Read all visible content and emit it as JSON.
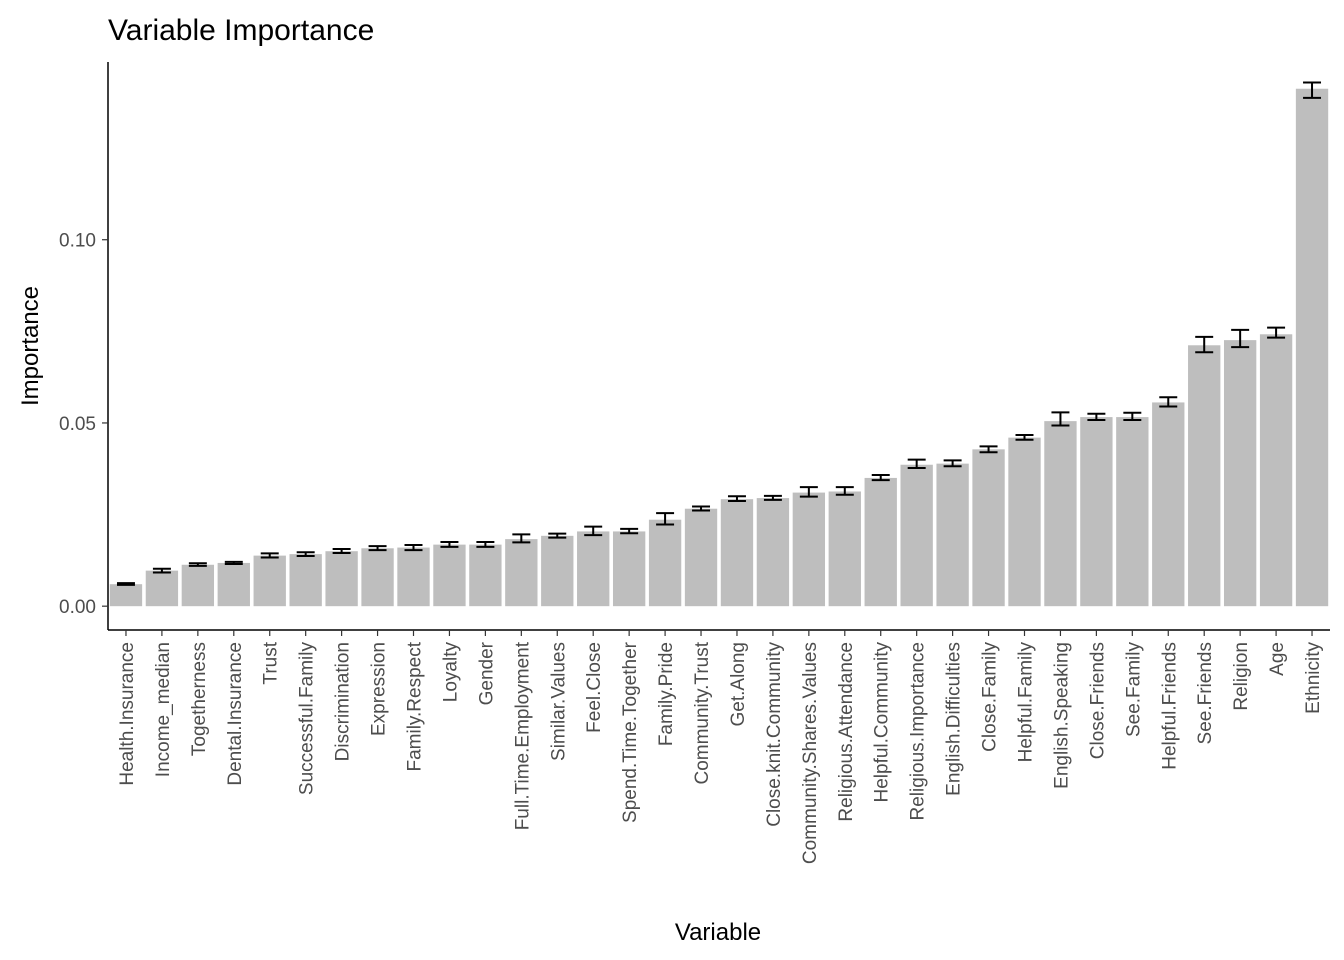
{
  "chart_data": {
    "type": "bar",
    "title": "Variable Importance",
    "xlabel": "Variable",
    "ylabel": "Importance",
    "ylim": [
      -0.0065,
      0.1485
    ],
    "yticks": [
      0.0,
      0.05,
      0.1
    ],
    "ytick_labels": [
      "0.00",
      "0.05",
      "0.10"
    ],
    "grid": false,
    "bar_color": "#bebebe",
    "errorbar_color": "#000000",
    "categories": [
      "Health.Insurance",
      "Income_median",
      "Togetherness",
      "Dental.Insurance",
      "Trust",
      "Successful.Family",
      "Discrimination",
      "Expression",
      "Family.Respect",
      "Loyalty",
      "Gender",
      "Full.Time.Employment",
      "Similar.Values",
      "Feel.Close",
      "Spend.Time.Together",
      "Family.Pride",
      "Community.Trust",
      "Get.Along",
      "Close.knit.Community",
      "Community.Shares.Values",
      "Religious.Attendance",
      "Helpful.Community",
      "Religious.Importance",
      "English.Difficulties",
      "Close.Family",
      "Helpful.Family",
      "English.Speaking",
      "Close.Friends",
      "See.Family",
      "Helpful.Friends",
      "See.Friends",
      "Religion",
      "Age",
      "Ethnicity"
    ],
    "values": [
      0.006,
      0.0097,
      0.0113,
      0.0118,
      0.0138,
      0.0142,
      0.015,
      0.0158,
      0.016,
      0.0168,
      0.0168,
      0.0183,
      0.0192,
      0.0204,
      0.0204,
      0.0236,
      0.0266,
      0.0292,
      0.0295,
      0.031,
      0.0313,
      0.035,
      0.0386,
      0.0389,
      0.0428,
      0.046,
      0.0505,
      0.0516,
      0.0516,
      0.0556,
      0.0712,
      0.0726,
      0.0742,
      0.1412
    ],
    "err_low": [
      0.0058,
      0.0092,
      0.011,
      0.0115,
      0.0133,
      0.0137,
      0.0145,
      0.0153,
      0.0153,
      0.0162,
      0.0162,
      0.0174,
      0.0187,
      0.0194,
      0.0199,
      0.0223,
      0.0261,
      0.0287,
      0.029,
      0.0299,
      0.0304,
      0.0344,
      0.0377,
      0.0382,
      0.042,
      0.0454,
      0.0493,
      0.0508,
      0.0508,
      0.0545,
      0.0693,
      0.0707,
      0.0733,
      0.1387
    ],
    "err_high": [
      0.0063,
      0.0102,
      0.0117,
      0.0121,
      0.0144,
      0.0147,
      0.0156,
      0.0164,
      0.0167,
      0.0175,
      0.0175,
      0.0196,
      0.0198,
      0.0217,
      0.0211,
      0.0254,
      0.0272,
      0.03,
      0.0301,
      0.0325,
      0.0325,
      0.0358,
      0.04,
      0.0398,
      0.0436,
      0.0467,
      0.0529,
      0.0525,
      0.0528,
      0.057,
      0.0735,
      0.0754,
      0.076,
      0.1429
    ]
  }
}
